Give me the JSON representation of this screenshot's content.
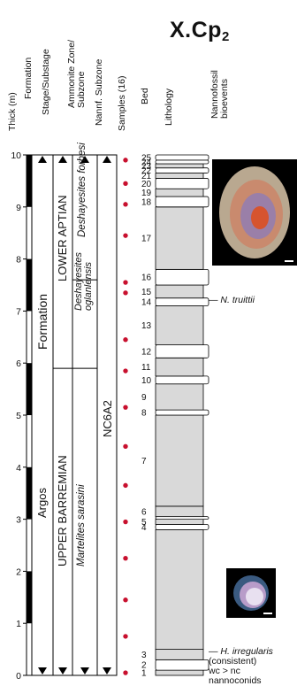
{
  "chart_data": {
    "type": "stratigraphic-column",
    "title": "X.Cp",
    "title_sub": "2",
    "thickness_axis": {
      "label": "Thick (m)",
      "min": 0,
      "max": 10,
      "ticks": [
        0,
        1,
        2,
        3,
        4,
        5,
        6,
        7,
        8,
        9,
        10
      ]
    },
    "headers": {
      "formation": "Formation",
      "stage": "Stage/Substage",
      "ammonite": "Ammonite Zone/ Subzone",
      "nannofossil": "Nannf. Subzone",
      "samples": "Samples (16)",
      "bed": "Bed",
      "lithology": "Lithology",
      "bioevents": "Nannofossil bioevents"
    },
    "formation_name": "Argos",
    "formation_word": "Formation",
    "stages": [
      {
        "label": "UPPER BARREMIAN",
        "from": 0,
        "to": 5.9
      },
      {
        "label": "LOWER APTIAN",
        "from": 5.9,
        "to": 10
      }
    ],
    "ammonite_zones": [
      {
        "label": "Martelites sarasini",
        "from": 0,
        "to": 5.9
      },
      {
        "label": "Deshayesites oglanlensis",
        "from": 5.9,
        "to": 7.6
      },
      {
        "label": "Deshayesites forbesi",
        "from": 7.6,
        "to": 10
      }
    ],
    "nannofossil_subzone": {
      "label": "NC6A2",
      "from": 0,
      "to": 10
    },
    "samples": [
      0.05,
      0.75,
      1.45,
      2.25,
      2.95,
      3.65,
      4.4,
      5.15,
      5.85,
      6.45,
      7.35,
      7.55,
      8.45,
      9.05,
      9.45,
      9.9
    ],
    "beds": [
      {
        "n": "1",
        "from": 0.0,
        "to": 0.1,
        "type": "marl"
      },
      {
        "n": "2",
        "from": 0.1,
        "to": 0.3,
        "type": "lime"
      },
      {
        "n": "3",
        "from": 0.3,
        "to": 0.5,
        "type": "marl"
      },
      {
        "n": "",
        "from": 0.5,
        "to": 2.8,
        "type": "marl"
      },
      {
        "n": "4",
        "from": 2.8,
        "to": 2.9,
        "type": "lime"
      },
      {
        "n": "5",
        "from": 2.9,
        "to": 3.0,
        "type": "marl"
      },
      {
        "n": "",
        "from": 3.0,
        "to": 3.05,
        "type": "lime"
      },
      {
        "n": "6",
        "from": 3.05,
        "to": 3.25,
        "type": "marl"
      },
      {
        "n": "7",
        "from": 3.25,
        "to": 5.0,
        "type": "marl"
      },
      {
        "n": "8",
        "from": 5.0,
        "to": 5.1,
        "type": "lime"
      },
      {
        "n": "9",
        "from": 5.1,
        "to": 5.6,
        "type": "marl"
      },
      {
        "n": "10",
        "from": 5.6,
        "to": 5.75,
        "type": "lime"
      },
      {
        "n": "11",
        "from": 5.75,
        "to": 6.1,
        "type": "marl"
      },
      {
        "n": "12",
        "from": 6.1,
        "to": 6.35,
        "type": "lime"
      },
      {
        "n": "13",
        "from": 6.35,
        "to": 7.1,
        "type": "marl"
      },
      {
        "n": "14",
        "from": 7.1,
        "to": 7.25,
        "type": "lime"
      },
      {
        "n": "15",
        "from": 7.25,
        "to": 7.5,
        "type": "marl"
      },
      {
        "n": "16",
        "from": 7.5,
        "to": 7.8,
        "type": "lime"
      },
      {
        "n": "17",
        "from": 7.8,
        "to": 9.0,
        "type": "marl"
      },
      {
        "n": "18",
        "from": 9.0,
        "to": 9.2,
        "type": "lime"
      },
      {
        "n": "19",
        "from": 9.2,
        "to": 9.35,
        "type": "marl"
      },
      {
        "n": "20",
        "from": 9.35,
        "to": 9.55,
        "type": "lime"
      },
      {
        "n": "21",
        "from": 9.55,
        "to": 9.65,
        "type": "marl"
      },
      {
        "n": "22",
        "from": 9.65,
        "to": 9.75,
        "type": "lime"
      },
      {
        "n": "23",
        "from": 9.75,
        "to": 9.83,
        "type": "marl"
      },
      {
        "n": "24",
        "from": 9.83,
        "to": 9.9,
        "type": "lime"
      },
      {
        "n": "25",
        "from": 9.9,
        "to": 10.0,
        "type": "lime"
      }
    ],
    "bioevents": [
      {
        "taxon": "N. truittii",
        "lines": [],
        "at": 7.2,
        "photo": "N. truittii"
      },
      {
        "taxon": "H. irregularis",
        "lines": [
          "(consistent)",
          "wc > nc",
          "nannoconids"
        ],
        "at": 0.35,
        "photo": "H. irregularis"
      }
    ],
    "colors": {
      "marl": "#d9d9d9",
      "lime": "#ffffff",
      "sample": "#c8102e",
      "gap": "#000000"
    }
  }
}
